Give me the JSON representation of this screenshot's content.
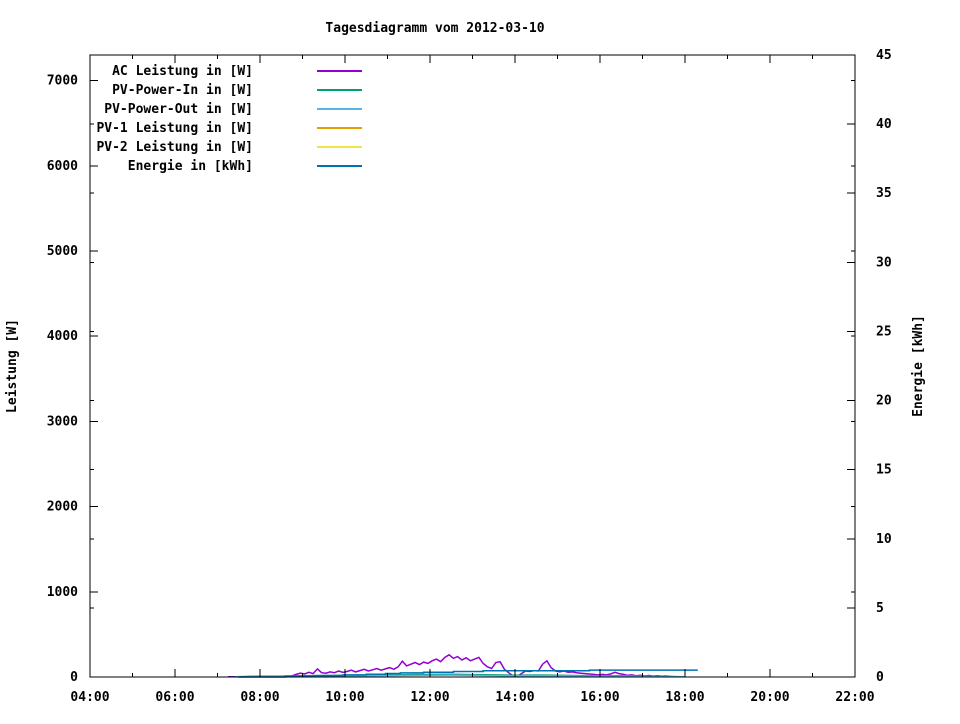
{
  "title": "Tagesdiagramm vom 2012-03-10",
  "chart_data": {
    "type": "line",
    "title": "Tagesdiagramm vom 2012-03-10",
    "grid": false,
    "legend_position": "top-left-inside",
    "x_axis": {
      "label": "",
      "range": [
        4,
        22
      ],
      "major_ticks": [
        4,
        6,
        8,
        10,
        12,
        14,
        16,
        18,
        20,
        22
      ],
      "minor_ticks": [
        5,
        7,
        9,
        11,
        13,
        15,
        17,
        19,
        21
      ],
      "tick_labels": [
        "04:00",
        "06:00",
        "08:00",
        "10:00",
        "12:00",
        "14:00",
        "16:00",
        "18:00",
        "20:00",
        "22:00"
      ]
    },
    "y1_axis": {
      "label": "Leistung [W]",
      "range": [
        0,
        7300
      ],
      "major_ticks": [
        0,
        1000,
        2000,
        3000,
        4000,
        5000,
        6000,
        7000
      ],
      "tick_labels": [
        "0",
        "1000",
        "2000",
        "3000",
        "4000",
        "5000",
        "6000",
        "7000"
      ]
    },
    "y2_axis": {
      "label": "Energie [kWh]",
      "range": [
        0,
        45
      ],
      "major_ticks": [
        0,
        5,
        10,
        15,
        20,
        25,
        30,
        35,
        40,
        45
      ],
      "tick_labels": [
        "0",
        "5",
        "10",
        "15",
        "20",
        "25",
        "30",
        "35",
        "40",
        "45"
      ]
    },
    "series": [
      {
        "name": "AC Leistung in [W]",
        "color": "#9400d3",
        "axis": "y1",
        "style": "line",
        "points": [
          [
            7.25,
            2
          ],
          [
            7.4,
            4
          ],
          [
            7.6,
            3
          ],
          [
            7.8,
            6
          ],
          [
            8.0,
            5
          ],
          [
            8.2,
            8
          ],
          [
            8.4,
            6
          ],
          [
            8.6,
            10
          ],
          [
            8.75,
            12
          ],
          [
            8.85,
            30
          ],
          [
            8.95,
            45
          ],
          [
            9.05,
            35
          ],
          [
            9.15,
            55
          ],
          [
            9.25,
            40
          ],
          [
            9.35,
            95
          ],
          [
            9.45,
            50
          ],
          [
            9.55,
            45
          ],
          [
            9.65,
            60
          ],
          [
            9.75,
            50
          ],
          [
            9.85,
            70
          ],
          [
            9.95,
            55
          ],
          [
            10.05,
            65
          ],
          [
            10.15,
            80
          ],
          [
            10.25,
            60
          ],
          [
            10.35,
            75
          ],
          [
            10.45,
            90
          ],
          [
            10.55,
            70
          ],
          [
            10.65,
            85
          ],
          [
            10.75,
            100
          ],
          [
            10.85,
            80
          ],
          [
            10.95,
            95
          ],
          [
            11.05,
            110
          ],
          [
            11.15,
            90
          ],
          [
            11.25,
            120
          ],
          [
            11.35,
            185
          ],
          [
            11.45,
            130
          ],
          [
            11.55,
            150
          ],
          [
            11.65,
            170
          ],
          [
            11.75,
            145
          ],
          [
            11.85,
            175
          ],
          [
            11.95,
            160
          ],
          [
            12.05,
            190
          ],
          [
            12.15,
            210
          ],
          [
            12.25,
            180
          ],
          [
            12.35,
            230
          ],
          [
            12.45,
            260
          ],
          [
            12.55,
            220
          ],
          [
            12.65,
            240
          ],
          [
            12.75,
            200
          ],
          [
            12.85,
            225
          ],
          [
            12.95,
            190
          ],
          [
            13.05,
            210
          ],
          [
            13.15,
            230
          ],
          [
            13.25,
            160
          ],
          [
            13.35,
            120
          ],
          [
            13.45,
            100
          ],
          [
            13.55,
            170
          ],
          [
            13.65,
            180
          ],
          [
            13.75,
            90
          ],
          [
            13.85,
            50
          ],
          [
            13.95,
            15
          ],
          [
            14.05,
            5
          ],
          [
            14.15,
            40
          ],
          [
            14.25,
            70
          ],
          [
            14.35,
            65
          ],
          [
            14.45,
            75
          ],
          [
            14.55,
            70
          ],
          [
            14.65,
            150
          ],
          [
            14.75,
            190
          ],
          [
            14.85,
            110
          ],
          [
            14.95,
            70
          ],
          [
            15.05,
            60
          ],
          [
            15.15,
            70
          ],
          [
            15.25,
            55
          ],
          [
            15.35,
            60
          ],
          [
            15.45,
            50
          ],
          [
            15.55,
            45
          ],
          [
            15.65,
            40
          ],
          [
            15.75,
            35
          ],
          [
            15.85,
            30
          ],
          [
            15.95,
            25
          ],
          [
            16.05,
            30
          ],
          [
            16.15,
            25
          ],
          [
            16.25,
            35
          ],
          [
            16.35,
            55
          ],
          [
            16.45,
            40
          ],
          [
            16.55,
            30
          ],
          [
            16.65,
            20
          ],
          [
            16.75,
            25
          ],
          [
            16.85,
            15
          ],
          [
            16.95,
            20
          ],
          [
            17.05,
            12
          ],
          [
            17.15,
            18
          ],
          [
            17.25,
            10
          ],
          [
            17.35,
            15
          ],
          [
            17.45,
            8
          ],
          [
            17.55,
            12
          ],
          [
            17.65,
            6
          ],
          [
            17.75,
            3
          ]
        ]
      },
      {
        "name": "PV-Power-In in [W]",
        "color": "#009e73",
        "axis": "y1",
        "style": "line",
        "points": [
          [
            7.4,
            3
          ],
          [
            8.0,
            8
          ],
          [
            8.5,
            10
          ],
          [
            9.0,
            15
          ],
          [
            9.5,
            18
          ],
          [
            10.0,
            20
          ],
          [
            10.5,
            22
          ],
          [
            11.0,
            25
          ],
          [
            11.5,
            28
          ],
          [
            12.0,
            30
          ],
          [
            12.5,
            32
          ],
          [
            13.0,
            28
          ],
          [
            13.5,
            25
          ],
          [
            14.0,
            20
          ],
          [
            14.5,
            24
          ],
          [
            15.0,
            20
          ],
          [
            15.5,
            16
          ],
          [
            16.0,
            14
          ],
          [
            16.5,
            14
          ],
          [
            17.0,
            10
          ],
          [
            17.5,
            7
          ],
          [
            18.0,
            4
          ]
        ]
      },
      {
        "name": "PV-Power-Out in [W]",
        "color": "#56b4e9",
        "axis": "y1",
        "style": "line",
        "points": [
          [
            7.4,
            1
          ],
          [
            8.0,
            4
          ],
          [
            8.5,
            6
          ],
          [
            9.0,
            9
          ],
          [
            9.5,
            11
          ],
          [
            10.0,
            13
          ],
          [
            10.5,
            15
          ],
          [
            11.0,
            17
          ],
          [
            11.5,
            19
          ],
          [
            12.0,
            21
          ],
          [
            12.5,
            22
          ],
          [
            13.0,
            19
          ],
          [
            13.5,
            17
          ],
          [
            14.0,
            13
          ],
          [
            14.5,
            16
          ],
          [
            15.0,
            13
          ],
          [
            15.5,
            10
          ],
          [
            16.0,
            9
          ],
          [
            16.5,
            9
          ],
          [
            17.0,
            6
          ],
          [
            17.5,
            4
          ],
          [
            18.0,
            2
          ]
        ]
      },
      {
        "name": "PV-1 Leistung in [W]",
        "color": "#e69f00",
        "axis": "y1",
        "style": "line",
        "points": []
      },
      {
        "name": "PV-2 Leistung in [W]",
        "color": "#f0e442",
        "axis": "y1",
        "style": "line",
        "points": []
      },
      {
        "name": "Energie in [kWh]",
        "color": "#0072b2",
        "axis": "y2",
        "style": "steps",
        "points": [
          [
            7.5,
            0
          ],
          [
            8.6,
            0.05
          ],
          [
            9.3,
            0.1
          ],
          [
            9.95,
            0.15
          ],
          [
            10.5,
            0.2
          ],
          [
            10.95,
            0.25
          ],
          [
            11.3,
            0.3
          ],
          [
            11.85,
            0.35
          ],
          [
            12.55,
            0.4
          ],
          [
            13.25,
            0.45
          ],
          [
            15.75,
            0.5
          ],
          [
            18.3,
            0.5
          ]
        ]
      }
    ]
  }
}
